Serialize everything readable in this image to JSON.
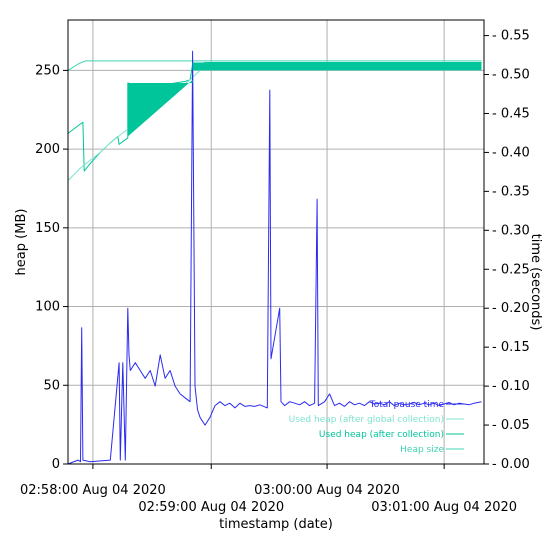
{
  "chart_data": {
    "type": "line",
    "xlabel": "timestamp (date)",
    "ylabel_left": "heap (MB)",
    "ylabel_right": "time (seconds)",
    "x_unit": "seconds after 02:58:00 on Aug 04 2020",
    "xlim": [
      -3,
      164
    ],
    "ylim_left": [
      0,
      282
    ],
    "ylim_right": [
      0,
      0.57
    ],
    "x_ticks": [
      {
        "label": "02:58:00 Aug 04 2020",
        "x": 7,
        "row": 0
      },
      {
        "label": "02:59:00 Aug 04 2020",
        "x": 54.5,
        "row": 1
      },
      {
        "label": "03:00:00 Aug 04 2020",
        "x": 101,
        "row": 0
      },
      {
        "label": "03:01:00 Aug 04 2020",
        "x": 148,
        "row": 1
      }
    ],
    "y_ticks_left": [
      0,
      50,
      100,
      150,
      200,
      250
    ],
    "y_ticks_right": [
      "0.00",
      "0.05",
      "0.10",
      "0.15",
      "0.20",
      "0.25",
      "0.30",
      "0.35",
      "0.40",
      "0.45",
      "0.50",
      "0.55"
    ],
    "grid": true,
    "legend_position": "lower-right",
    "colors": {
      "pause": "#2b2bf0",
      "heap_global": "#7de3cf",
      "heap_collection": "#00c49a",
      "heap_size": "#3fd4b4"
    },
    "series": [
      {
        "name": "Total pause time",
        "axis": "right",
        "color": "#2b2bf0",
        "points": [
          [
            -3,
            0.0
          ],
          [
            1,
            0.005
          ],
          [
            2,
            0.003
          ],
          [
            2.5,
            0.175
          ],
          [
            3,
            0.005
          ],
          [
            6,
            0.003
          ],
          [
            10,
            0.004
          ],
          [
            14,
            0.005
          ],
          [
            17.5,
            0.13
          ],
          [
            18,
            0.005
          ],
          [
            19,
            0.13
          ],
          [
            20,
            0.005
          ],
          [
            21,
            0.2
          ],
          [
            21.5,
            0.14
          ],
          [
            22,
            0.12
          ],
          [
            24,
            0.13
          ],
          [
            26,
            0.12
          ],
          [
            28,
            0.11
          ],
          [
            30,
            0.12
          ],
          [
            32,
            0.1
          ],
          [
            34,
            0.14
          ],
          [
            36,
            0.11
          ],
          [
            38,
            0.12
          ],
          [
            40,
            0.1
          ],
          [
            42,
            0.09
          ],
          [
            44,
            0.085
          ],
          [
            46,
            0.08
          ],
          [
            47,
            0.53
          ],
          [
            48,
            0.1
          ],
          [
            49,
            0.07
          ],
          [
            50,
            0.06
          ],
          [
            52,
            0.05
          ],
          [
            54,
            0.06
          ],
          [
            56,
            0.075
          ],
          [
            58,
            0.08
          ],
          [
            60,
            0.075
          ],
          [
            62,
            0.078
          ],
          [
            64,
            0.072
          ],
          [
            66,
            0.078
          ],
          [
            68,
            0.074
          ],
          [
            70,
            0.075
          ],
          [
            72,
            0.074
          ],
          [
            74,
            0.076
          ],
          [
            77,
            0.072
          ],
          [
            78,
            0.48
          ],
          [
            78.5,
            0.135
          ],
          [
            82,
            0.2
          ],
          [
            82.5,
            0.08
          ],
          [
            84,
            0.075
          ],
          [
            86,
            0.08
          ],
          [
            88,
            0.078
          ],
          [
            90,
            0.076
          ],
          [
            92,
            0.08
          ],
          [
            94,
            0.075
          ],
          [
            96,
            0.078
          ],
          [
            97,
            0.34
          ],
          [
            97.5,
            0.075
          ],
          [
            100,
            0.08
          ],
          [
            102,
            0.09
          ],
          [
            104,
            0.075
          ],
          [
            106,
            0.078
          ],
          [
            108,
            0.074
          ],
          [
            110,
            0.08
          ],
          [
            112,
            0.076
          ],
          [
            114,
            0.078
          ],
          [
            116,
            0.075
          ],
          [
            118,
            0.08
          ],
          [
            120,
            0.077
          ],
          [
            122,
            0.078
          ],
          [
            124,
            0.076
          ],
          [
            126,
            0.08
          ],
          [
            128,
            0.075
          ],
          [
            130,
            0.078
          ],
          [
            132,
            0.076
          ],
          [
            134,
            0.077
          ],
          [
            136,
            0.079
          ],
          [
            138,
            0.076
          ],
          [
            140,
            0.078
          ],
          [
            142,
            0.076
          ],
          [
            144,
            0.078
          ],
          [
            146,
            0.075
          ],
          [
            148,
            0.077
          ],
          [
            150,
            0.079
          ],
          [
            152,
            0.076
          ],
          [
            154,
            0.078
          ],
          [
            156,
            0.077
          ],
          [
            158,
            0.076
          ],
          [
            160,
            0.078
          ],
          [
            163,
            0.08
          ]
        ]
      },
      {
        "name": "Used heap (after global collection)",
        "axis": "left",
        "color": "#7de3cf",
        "points": [
          [
            -3,
            180
          ],
          [
            2,
            188
          ],
          [
            6,
            193
          ],
          [
            10,
            198
          ],
          [
            14,
            204
          ],
          [
            18,
            209
          ],
          [
            22,
            214
          ],
          [
            26,
            219
          ],
          [
            30,
            224
          ],
          [
            34,
            229
          ],
          [
            38,
            234
          ],
          [
            42,
            239
          ],
          [
            46,
            244
          ],
          [
            50,
            250
          ],
          [
            52,
            253
          ],
          [
            163,
            253
          ]
        ]
      },
      {
        "name": "Used heap (after collection)",
        "axis": "left",
        "color": "#00c49a",
        "points": [
          [
            -3,
            210
          ],
          [
            2,
            216
          ],
          [
            3,
            217
          ],
          [
            3.5,
            186
          ],
          [
            6,
            191
          ],
          [
            10,
            198
          ],
          [
            14,
            204
          ],
          [
            17,
            208
          ],
          [
            17.5,
            203
          ],
          [
            20,
            206
          ],
          [
            21,
            207
          ],
          [
            21,
            242
          ],
          [
            24,
            241
          ],
          [
            28,
            240
          ],
          [
            32,
            240
          ],
          [
            36,
            241
          ],
          [
            40,
            242
          ],
          [
            44,
            243
          ],
          [
            46,
            244
          ],
          [
            47,
            254
          ],
          [
            50,
            254
          ],
          [
            52,
            255
          ],
          [
            163,
            255
          ]
        ]
      },
      {
        "name": "Heap size",
        "axis": "left",
        "color": "#3fd4b4",
        "points": [
          [
            -3,
            250
          ],
          [
            1,
            254
          ],
          [
            4,
            256
          ],
          [
            46,
            256
          ],
          [
            47,
            256
          ],
          [
            163,
            256
          ]
        ]
      }
    ]
  }
}
